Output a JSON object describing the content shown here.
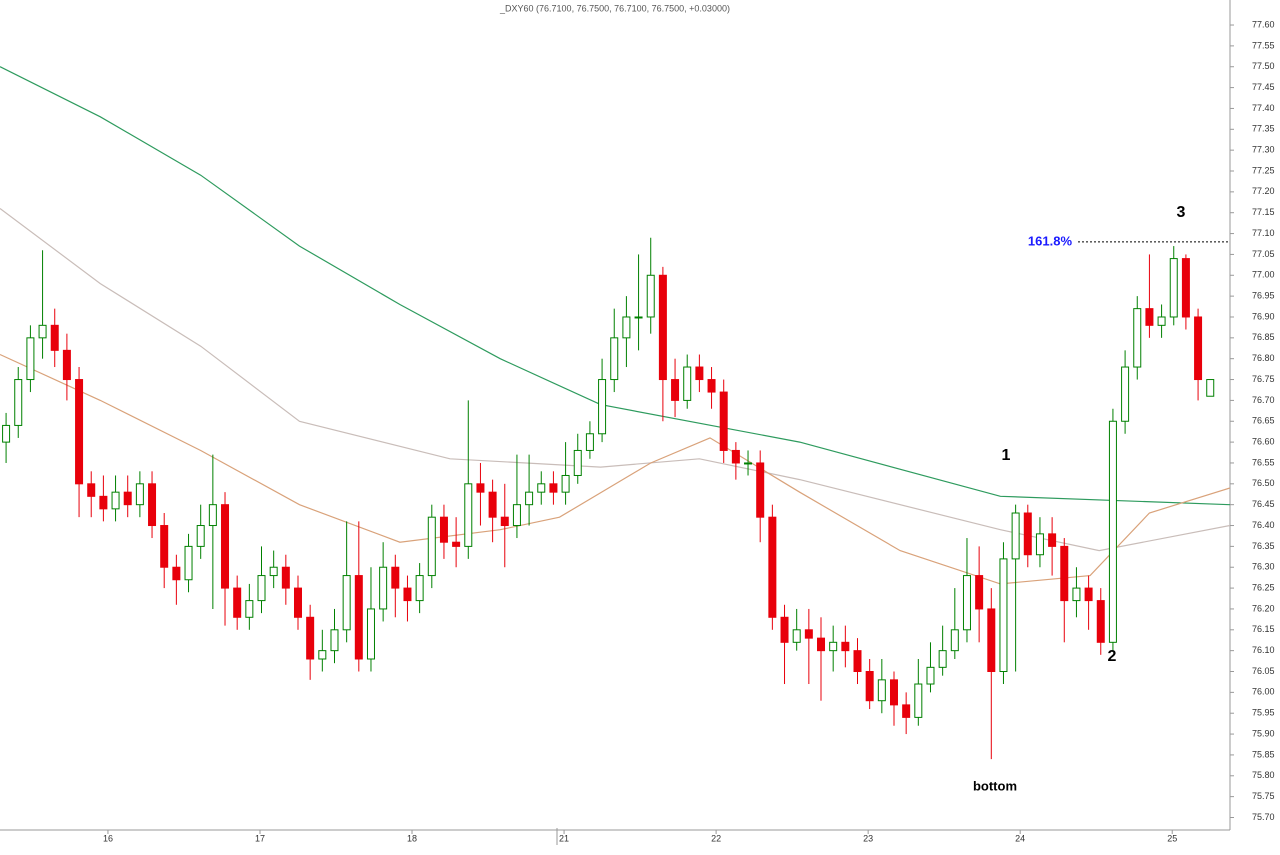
{
  "chart_data": {
    "type": "candlestick",
    "title": "_DXY60 (76.7100, 76.7500, 76.7100, 76.7500, +0.03000)",
    "up_color": "#008000",
    "down_color": "#e8000b",
    "x": [
      0.33,
      0.41,
      0.49,
      0.57,
      0.65,
      0.73,
      0.81,
      0.89,
      0.97,
      1.05,
      1.13,
      1.21,
      1.29,
      1.37,
      1.45,
      1.53,
      1.61,
      1.69,
      1.77,
      1.85,
      1.93,
      2.01,
      2.09,
      2.17,
      2.25,
      2.33,
      2.41,
      2.49,
      2.57,
      2.65,
      2.73,
      2.81,
      2.89,
      2.97,
      3.05,
      3.13,
      3.21,
      3.29,
      3.37,
      3.45,
      3.53,
      3.61,
      3.69,
      3.77,
      3.85,
      3.93,
      4.01,
      4.09,
      4.17,
      4.25,
      4.33,
      4.41,
      4.49,
      4.57,
      4.65,
      4.73,
      4.81,
      4.89,
      4.97,
      5.05,
      5.13,
      5.21,
      5.29,
      5.37,
      5.45,
      5.53,
      5.61,
      5.69,
      5.77,
      5.85,
      5.93,
      6.01,
      6.09,
      6.17,
      6.25,
      6.33,
      6.41,
      6.49,
      6.57,
      6.65,
      6.73,
      6.81,
      6.89,
      6.97,
      7.05,
      7.13,
      7.21,
      7.29,
      7.37,
      7.45,
      7.53,
      7.61,
      7.69,
      7.77,
      7.85,
      7.93,
      8.01,
      8.09,
      8.17,
      8.25
    ],
    "open": [
      76.6,
      76.64,
      76.75,
      76.85,
      76.88,
      76.82,
      76.75,
      76.5,
      76.47,
      76.44,
      76.48,
      76.45,
      76.5,
      76.4,
      76.3,
      76.27,
      76.35,
      76.4,
      76.45,
      76.25,
      76.18,
      76.22,
      76.28,
      76.3,
      76.25,
      76.18,
      76.08,
      76.1,
      76.15,
      76.28,
      76.08,
      76.2,
      76.3,
      76.25,
      76.22,
      76.28,
      76.42,
      76.36,
      76.35,
      76.5,
      76.48,
      76.42,
      76.4,
      76.45,
      76.48,
      76.5,
      76.48,
      76.52,
      76.58,
      76.62,
      76.75,
      76.85,
      76.9,
      76.9,
      77.0,
      76.75,
      76.7,
      76.78,
      76.75,
      76.72,
      76.58,
      76.55,
      76.55,
      76.42,
      76.18,
      76.12,
      76.15,
      76.13,
      76.1,
      76.12,
      76.1,
      76.05,
      75.98,
      76.03,
      75.97,
      75.94,
      76.02,
      76.06,
      76.1,
      76.15,
      76.28,
      76.2,
      76.05,
      76.32,
      76.43,
      76.33,
      76.38,
      76.35,
      76.22,
      76.25,
      76.22,
      76.12,
      76.65,
      76.78,
      76.92,
      76.88,
      76.9,
      77.04,
      76.9,
      76.71
    ],
    "high": [
      76.67,
      76.78,
      76.88,
      77.06,
      76.92,
      76.86,
      76.78,
      76.53,
      76.52,
      76.52,
      76.52,
      76.53,
      76.53,
      76.43,
      76.33,
      76.38,
      76.45,
      76.57,
      76.48,
      76.28,
      76.26,
      76.35,
      76.34,
      76.33,
      76.28,
      76.21,
      76.15,
      76.2,
      76.41,
      76.41,
      76.3,
      76.36,
      76.33,
      76.28,
      76.31,
      76.45,
      76.45,
      76.42,
      76.7,
      76.55,
      76.51,
      76.5,
      76.57,
      76.57,
      76.53,
      76.53,
      76.6,
      76.62,
      76.65,
      76.8,
      76.92,
      76.95,
      77.05,
      77.09,
      77.02,
      76.8,
      76.81,
      76.81,
      76.78,
      76.75,
      76.6,
      76.58,
      76.58,
      76.45,
      76.21,
      76.2,
      76.2,
      76.18,
      76.16,
      76.16,
      76.13,
      76.08,
      76.08,
      76.05,
      76.0,
      76.08,
      76.12,
      76.16,
      76.25,
      76.37,
      76.35,
      76.25,
      76.36,
      76.45,
      76.45,
      76.42,
      76.42,
      76.37,
      76.3,
      76.28,
      76.25,
      76.68,
      76.82,
      76.95,
      77.05,
      76.93,
      77.07,
      77.05,
      76.92,
      76.75
    ],
    "low": [
      76.55,
      76.61,
      76.72,
      76.8,
      76.78,
      76.7,
      76.42,
      76.42,
      76.41,
      76.41,
      76.42,
      76.42,
      76.37,
      76.25,
      76.21,
      76.24,
      76.32,
      76.2,
      76.16,
      76.15,
      76.15,
      76.19,
      76.25,
      76.21,
      76.15,
      76.03,
      76.05,
      76.07,
      76.12,
      76.05,
      76.05,
      76.17,
      76.18,
      76.17,
      76.19,
      76.25,
      76.32,
      76.3,
      76.32,
      76.4,
      76.36,
      76.3,
      76.37,
      76.4,
      76.45,
      76.45,
      76.45,
      76.5,
      76.56,
      76.6,
      76.72,
      76.78,
      76.82,
      76.86,
      76.65,
      76.66,
      76.68,
      76.72,
      76.68,
      76.55,
      76.51,
      76.52,
      76.36,
      76.15,
      76.02,
      76.1,
      76.02,
      75.98,
      76.05,
      76.06,
      76.02,
      75.96,
      75.95,
      75.92,
      75.9,
      75.92,
      76.0,
      76.04,
      76.08,
      76.12,
      76.12,
      75.84,
      76.02,
      76.05,
      76.3,
      76.3,
      76.28,
      76.12,
      76.18,
      76.15,
      76.09,
      76.1,
      76.62,
      76.75,
      76.85,
      76.85,
      76.88,
      76.87,
      76.7,
      76.71
    ],
    "close": [
      76.64,
      76.75,
      76.85,
      76.88,
      76.82,
      76.75,
      76.5,
      76.47,
      76.44,
      76.48,
      76.45,
      76.5,
      76.4,
      76.3,
      76.27,
      76.35,
      76.4,
      76.45,
      76.25,
      76.18,
      76.22,
      76.28,
      76.3,
      76.25,
      76.18,
      76.08,
      76.1,
      76.15,
      76.28,
      76.08,
      76.2,
      76.3,
      76.25,
      76.22,
      76.28,
      76.42,
      76.36,
      76.35,
      76.5,
      76.48,
      76.42,
      76.4,
      76.45,
      76.48,
      76.5,
      76.48,
      76.52,
      76.58,
      76.62,
      76.75,
      76.85,
      76.9,
      76.9,
      77.0,
      76.75,
      76.7,
      76.78,
      76.75,
      76.72,
      76.58,
      76.55,
      76.55,
      76.42,
      76.18,
      76.12,
      76.15,
      76.13,
      76.1,
      76.12,
      76.1,
      76.05,
      75.98,
      76.03,
      75.97,
      75.94,
      76.02,
      76.06,
      76.1,
      76.15,
      76.28,
      76.2,
      76.05,
      76.32,
      76.43,
      76.33,
      76.38,
      76.35,
      76.22,
      76.25,
      76.22,
      76.12,
      76.65,
      76.78,
      76.92,
      76.88,
      76.9,
      77.04,
      76.9,
      76.75,
      76.75
    ],
    "lines": [
      {
        "color": "#2e9b5e",
        "x": [
          0.29,
          0.95,
          1.61,
          2.26,
          2.92,
          3.58,
          4.24,
          5.55,
          6.87,
          8.38
        ],
        "values": [
          77.5,
          77.38,
          77.24,
          77.07,
          76.93,
          76.8,
          76.69,
          76.6,
          76.47,
          76.45
        ]
      },
      {
        "color": "#c9bdb9",
        "x": [
          0.29,
          0.95,
          1.61,
          2.26,
          3.25,
          4.24,
          4.89,
          5.55,
          6.87,
          7.52,
          8.38
        ],
        "values": [
          77.16,
          76.98,
          76.83,
          76.65,
          76.56,
          76.54,
          76.56,
          76.51,
          76.39,
          76.34,
          76.4
        ]
      },
      {
        "color": "#d9a27a",
        "x": [
          0.29,
          0.95,
          1.61,
          2.26,
          2.92,
          3.58,
          3.97,
          4.57,
          4.96,
          5.55,
          6.21,
          6.87,
          7.46,
          7.85,
          8.38
        ],
        "values": [
          76.81,
          76.7,
          76.58,
          76.45,
          76.36,
          76.39,
          76.42,
          76.55,
          76.61,
          76.48,
          76.34,
          76.26,
          76.28,
          76.43,
          76.49
        ]
      }
    ],
    "xlim": [
      0.29,
      8.38
    ],
    "xticks": [
      {
        "value": 1,
        "label": "16"
      },
      {
        "value": 2,
        "label": "17"
      },
      {
        "value": 3,
        "label": "18"
      },
      {
        "value": 4,
        "label": "21"
      },
      {
        "value": 5,
        "label": "22"
      },
      {
        "value": 6,
        "label": "23"
      },
      {
        "value": 7,
        "label": "24"
      },
      {
        "value": 8,
        "label": "25"
      }
    ],
    "ylim": [
      75.67,
      77.66
    ],
    "yticks": [
      {
        "value": 77.6,
        "label": "77.60"
      },
      {
        "value": 77.55,
        "label": "77.55"
      },
      {
        "value": 77.5,
        "label": "77.50"
      },
      {
        "value": 77.45,
        "label": "77.45"
      },
      {
        "value": 77.4,
        "label": "77.40"
      },
      {
        "value": 77.35,
        "label": "77.35"
      },
      {
        "value": 77.3,
        "label": "77.30"
      },
      {
        "value": 77.25,
        "label": "77.25"
      },
      {
        "value": 77.2,
        "label": "77.20"
      },
      {
        "value": 77.15,
        "label": "77.15"
      },
      {
        "value": 77.1,
        "label": "77.10"
      },
      {
        "value": 77.05,
        "label": "77.05"
      },
      {
        "value": 77.0,
        "label": "77.00"
      },
      {
        "value": 76.95,
        "label": "76.95"
      },
      {
        "value": 76.9,
        "label": "76.90"
      },
      {
        "value": 76.85,
        "label": "76.85"
      },
      {
        "value": 76.8,
        "label": "76.80"
      },
      {
        "value": 76.75,
        "label": "76.75"
      },
      {
        "value": 76.7,
        "label": "76.70"
      },
      {
        "value": 76.65,
        "label": "76.65"
      },
      {
        "value": 76.6,
        "label": "76.60"
      },
      {
        "value": 76.55,
        "label": "76.55"
      },
      {
        "value": 76.5,
        "label": "76.50"
      },
      {
        "value": 76.45,
        "label": "76.45"
      },
      {
        "value": 76.4,
        "label": "76.40"
      },
      {
        "value": 76.35,
        "label": "76.35"
      },
      {
        "value": 76.3,
        "label": "76.30"
      },
      {
        "value": 76.25,
        "label": "76.25"
      },
      {
        "value": 76.2,
        "label": "76.20"
      },
      {
        "value": 76.15,
        "label": "76.15"
      },
      {
        "value": 76.1,
        "label": "76.10"
      },
      {
        "value": 76.05,
        "label": "76.05"
      },
      {
        "value": 76.0,
        "label": "76.00"
      },
      {
        "value": 75.95,
        "label": "75.95"
      },
      {
        "value": 75.9,
        "label": "75.90"
      },
      {
        "value": 75.85,
        "label": "75.85"
      },
      {
        "value": 75.8,
        "label": "75.80"
      },
      {
        "value": 75.75,
        "label": "75.75"
      },
      {
        "value": 75.7,
        "label": "75.70"
      }
    ],
    "fib_level": 77.08,
    "annotations": [
      "1",
      "2",
      "3",
      "bottom",
      "161.8%"
    ]
  }
}
